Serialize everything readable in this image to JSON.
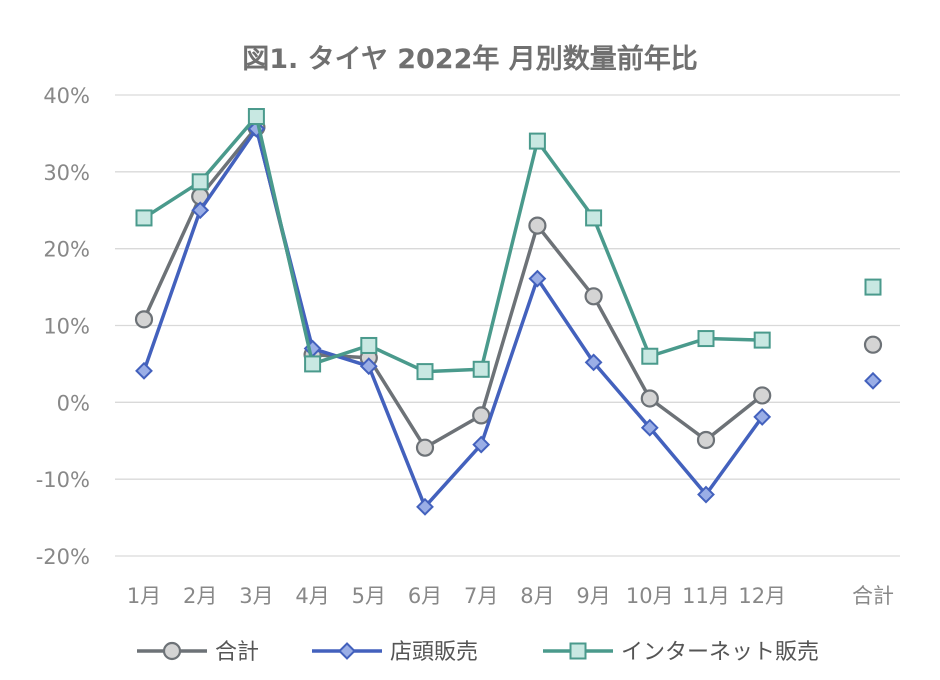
{
  "chart_data": {
    "type": "line",
    "title": "図1. タイヤ 2022年 月別数量前年比",
    "xlabel": "",
    "ylabel": "",
    "categories": [
      "1月",
      "2月",
      "3月",
      "4月",
      "5月",
      "6月",
      "7月",
      "8月",
      "9月",
      "10月",
      "11月",
      "12月"
    ],
    "total_label": "合計",
    "y_ticks": [
      "-20%",
      "-10%",
      "0%",
      "10%",
      "20%",
      "30%",
      "40%"
    ],
    "ylim": [
      -20,
      40
    ],
    "y_step": 10,
    "grid": true,
    "legend_position": "bottom",
    "series": [
      {
        "name": "合計",
        "marker": "circle",
        "color": "#6d7277",
        "marker_fill": "#d4d4d4",
        "values": [
          10.8,
          26.8,
          35.8,
          6.2,
          5.8,
          -5.9,
          -1.7,
          23.0,
          13.8,
          0.5,
          -4.9,
          0.9
        ],
        "total": 7.5
      },
      {
        "name": "店頭販売",
        "marker": "diamond",
        "color": "#4361bd",
        "marker_fill": "#9aaee6",
        "values": [
          4.1,
          25.0,
          35.6,
          7.0,
          4.7,
          -13.6,
          -5.5,
          16.1,
          5.2,
          -3.3,
          -12.0,
          -1.9
        ],
        "total": 2.8
      },
      {
        "name": "インターネット販売",
        "marker": "square",
        "color": "#4a9a8c",
        "marker_fill": "#c8e8e2",
        "values": [
          24.0,
          28.7,
          37.2,
          5.0,
          7.4,
          4.0,
          4.3,
          34.0,
          24.0,
          6.0,
          8.3,
          8.1
        ],
        "total": 15.0
      }
    ]
  }
}
